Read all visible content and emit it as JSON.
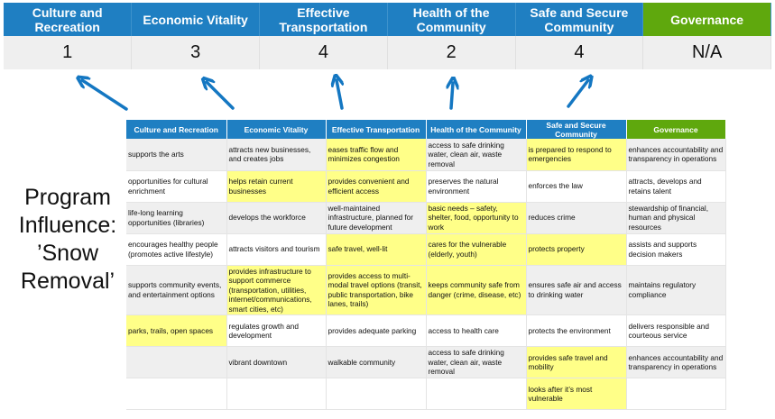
{
  "top_table": {
    "headers": [
      "Culture and Recreation",
      "Economic Vitality",
      "Effective Transportation",
      "Health of the Community",
      "Safe and Secure Community",
      "Governance"
    ],
    "scores": [
      "1",
      "3",
      "4",
      "2",
      "4",
      "N/A"
    ]
  },
  "side_label": "Program Influence: ’Snow Removal’",
  "colors": {
    "header_blue": "#1f7fc2",
    "governance_green": "#5fa80d",
    "highlight_yellow": "#ffff88",
    "row_gray": "#efefef",
    "arrow_blue": "#1477c2"
  },
  "grid": {
    "headers": [
      "Culture and Recreation",
      "Economic Vitality",
      "Effective Transportation",
      "Health of the Community",
      "Safe and Secure Community",
      "Governance"
    ],
    "rows": [
      [
        {
          "t": "supports the arts",
          "hl": false
        },
        {
          "t": "attracts new businesses, and creates jobs",
          "hl": false
        },
        {
          "t": "eases traffic flow and minimizes congestion",
          "hl": true
        },
        {
          "t": "access to safe drinking water, clean air, waste removal",
          "hl": false
        },
        {
          "t": "is prepared to respond to emergencies",
          "hl": true
        },
        {
          "t": "enhances accountability and transparency in operations",
          "hl": false
        }
      ],
      [
        {
          "t": "opportunities for cultural enrichment",
          "hl": false
        },
        {
          "t": "helps retain current businesses",
          "hl": true
        },
        {
          "t": "provides convenient and efficient access",
          "hl": true
        },
        {
          "t": "preserves the natural environment",
          "hl": false
        },
        {
          "t": "enforces the law",
          "hl": false
        },
        {
          "t": "attracts, develops and retains talent",
          "hl": false
        }
      ],
      [
        {
          "t": "life-long learning opportunities (libraries)",
          "hl": false
        },
        {
          "t": "develops the workforce",
          "hl": false
        },
        {
          "t": "well-maintained infrastructure, planned for future development",
          "hl": false
        },
        {
          "t": "basic needs – safety, shelter, food, opportunity to work",
          "hl": true
        },
        {
          "t": "reduces crime",
          "hl": false
        },
        {
          "t": "stewardship of financial, human and physical resources",
          "hl": false
        }
      ],
      [
        {
          "t": "encourages healthy people (promotes active lifestyle)",
          "hl": false
        },
        {
          "t": "attracts visitors and tourism",
          "hl": false
        },
        {
          "t": "safe travel, well-lit",
          "hl": true
        },
        {
          "t": "cares for the vulnerable (elderly, youth)",
          "hl": true
        },
        {
          "t": "protects property",
          "hl": true
        },
        {
          "t": "assists and supports decision makers",
          "hl": false
        }
      ],
      [
        {
          "t": "supports community events, and entertainment options",
          "hl": false
        },
        {
          "t": "provides infrastructure to support commerce (transportation, utilities, internet/communications, smart cities, etc)",
          "hl": true
        },
        {
          "t": "provides access to multi-modal travel options (transit, public transportation, bike lanes, trails)",
          "hl": true
        },
        {
          "t": "keeps community safe from danger (crime, disease, etc)",
          "hl": true
        },
        {
          "t": "ensures safe air and access to drinking water",
          "hl": false
        },
        {
          "t": "maintains regulatory compliance",
          "hl": false
        }
      ],
      [
        {
          "t": "parks, trails, open spaces",
          "hl": true
        },
        {
          "t": "regulates growth and development",
          "hl": false
        },
        {
          "t": "provides adequate parking",
          "hl": false
        },
        {
          "t": "access to health care",
          "hl": false
        },
        {
          "t": "protects the environment",
          "hl": false
        },
        {
          "t": "delivers responsible and courteous service",
          "hl": false
        }
      ],
      [
        {
          "t": "",
          "hl": false
        },
        {
          "t": "vibrant downtown",
          "hl": false
        },
        {
          "t": "walkable community",
          "hl": false
        },
        {
          "t": "access to safe drinking water, clean air, waste removal",
          "hl": false
        },
        {
          "t": "provides safe travel and mobility",
          "hl": true
        },
        {
          "t": "enhances accountability and transparency in operations",
          "hl": false
        }
      ],
      [
        {
          "t": "",
          "hl": false
        },
        {
          "t": "",
          "hl": false
        },
        {
          "t": "",
          "hl": false
        },
        {
          "t": "",
          "hl": false
        },
        {
          "t": "looks after it’s most vulnerable",
          "hl": true
        },
        {
          "t": "",
          "hl": false
        }
      ]
    ]
  }
}
